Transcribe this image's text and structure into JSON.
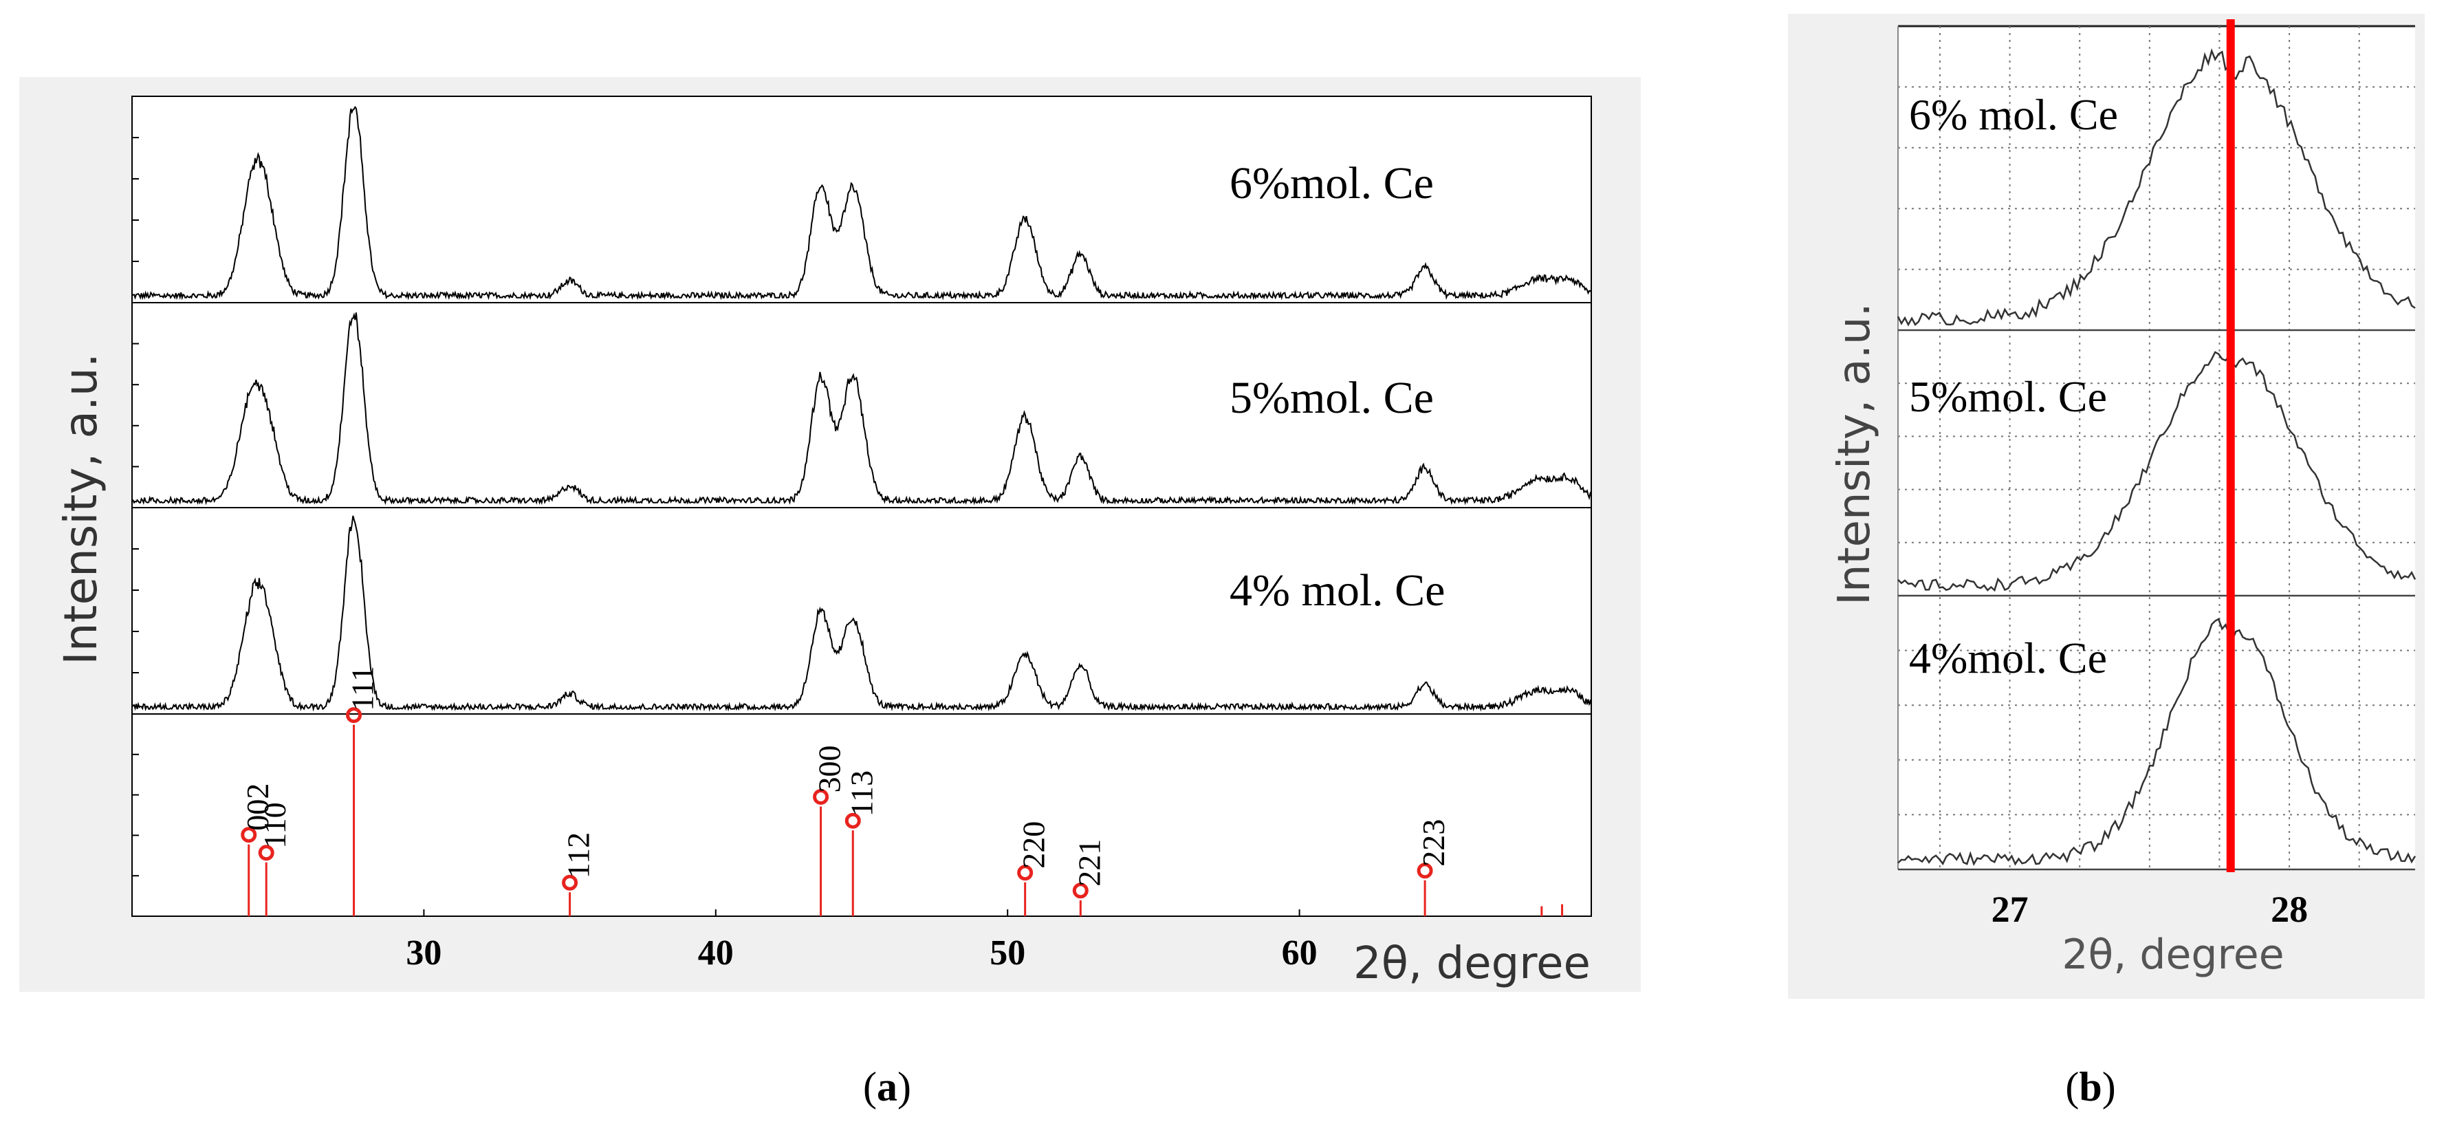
{
  "chart_data": [
    {
      "type": "line",
      "panel_label": "(a)",
      "panel_letter": "a",
      "xlabel": "2θ, degree",
      "ylabel": "Intensity, a.u.",
      "xlim": [
        20,
        70
      ],
      "x_ticks": [
        30,
        40,
        50,
        60
      ],
      "stack": [
        {
          "name": "6%mol. Ce",
          "peaks": [
            {
              "x": 24.1,
              "h": 0.47,
              "w": 0.4
            },
            {
              "x": 24.6,
              "h": 0.4,
              "w": 0.4
            },
            {
              "x": 27.6,
              "h": 1.0,
              "w": 0.33
            },
            {
              "x": 35.0,
              "h": 0.08,
              "w": 0.3
            },
            {
              "x": 43.6,
              "h": 0.58,
              "w": 0.33
            },
            {
              "x": 44.7,
              "h": 0.57,
              "w": 0.38
            },
            {
              "x": 50.6,
              "h": 0.41,
              "w": 0.36
            },
            {
              "x": 52.5,
              "h": 0.22,
              "w": 0.3
            },
            {
              "x": 64.3,
              "h": 0.15,
              "w": 0.3
            },
            {
              "x": 68.2,
              "h": 0.09,
              "w": 0.6
            },
            {
              "x": 69.3,
              "h": 0.07,
              "w": 0.4
            }
          ]
        },
        {
          "name": "5%mol. Ce",
          "peaks": [
            {
              "x": 24.0,
              "h": 0.43,
              "w": 0.4
            },
            {
              "x": 24.6,
              "h": 0.4,
              "w": 0.4
            },
            {
              "x": 27.6,
              "h": 1.0,
              "w": 0.33
            },
            {
              "x": 35.0,
              "h": 0.08,
              "w": 0.3
            },
            {
              "x": 43.6,
              "h": 0.66,
              "w": 0.33
            },
            {
              "x": 44.7,
              "h": 0.66,
              "w": 0.38
            },
            {
              "x": 50.6,
              "h": 0.45,
              "w": 0.36
            },
            {
              "x": 52.5,
              "h": 0.24,
              "w": 0.3
            },
            {
              "x": 64.3,
              "h": 0.18,
              "w": 0.3
            },
            {
              "x": 68.2,
              "h": 0.12,
              "w": 0.6
            },
            {
              "x": 69.3,
              "h": 0.1,
              "w": 0.4
            }
          ]
        },
        {
          "name": "4% mol. Ce",
          "peaks": [
            {
              "x": 24.1,
              "h": 0.42,
              "w": 0.4
            },
            {
              "x": 24.6,
              "h": 0.38,
              "w": 0.4
            },
            {
              "x": 27.6,
              "h": 1.0,
              "w": 0.33
            },
            {
              "x": 35.0,
              "h": 0.07,
              "w": 0.3
            },
            {
              "x": 43.6,
              "h": 0.5,
              "w": 0.33
            },
            {
              "x": 44.7,
              "h": 0.47,
              "w": 0.38
            },
            {
              "x": 50.6,
              "h": 0.28,
              "w": 0.36
            },
            {
              "x": 52.5,
              "h": 0.22,
              "w": 0.3
            },
            {
              "x": 64.3,
              "h": 0.12,
              "w": 0.3
            },
            {
              "x": 68.2,
              "h": 0.09,
              "w": 0.6
            },
            {
              "x": 69.3,
              "h": 0.07,
              "w": 0.4
            }
          ]
        }
      ],
      "reference": {
        "color": "#e8231e",
        "lines": [
          {
            "x": 24.0,
            "h": 0.36,
            "hkl": "002"
          },
          {
            "x": 24.6,
            "h": 0.27,
            "hkl": "110"
          },
          {
            "x": 27.6,
            "h": 0.96,
            "hkl": "111"
          },
          {
            "x": 35.0,
            "h": 0.12,
            "hkl": "112"
          },
          {
            "x": 43.6,
            "h": 0.55,
            "hkl": "300"
          },
          {
            "x": 44.7,
            "h": 0.43,
            "hkl": "113"
          },
          {
            "x": 50.6,
            "h": 0.17,
            "hkl": "220"
          },
          {
            "x": 52.5,
            "h": 0.08,
            "hkl": "221"
          },
          {
            "x": 64.3,
            "h": 0.18,
            "hkl": "223"
          },
          {
            "x": 68.3,
            "h": 0.05,
            "hkl": ""
          },
          {
            "x": 69.0,
            "h": 0.06,
            "hkl": ""
          }
        ]
      }
    },
    {
      "type": "line",
      "panel_label": "(b)",
      "panel_letter": "b",
      "xlabel": "2θ, degree",
      "ylabel": "Intensity, a.u.",
      "xlim": [
        26.6,
        28.45
      ],
      "x_ticks": [
        27,
        28
      ],
      "marker_x": 27.79,
      "marker_color": "#ff0000",
      "stack": [
        {
          "name": "6% mol. Ce",
          "center": 27.78,
          "width": 0.27
        },
        {
          "name": "5%mol. Ce",
          "center": 27.78,
          "width": 0.25
        },
        {
          "name": "4%mol. Ce",
          "center": 27.78,
          "width": 0.2
        }
      ]
    }
  ]
}
